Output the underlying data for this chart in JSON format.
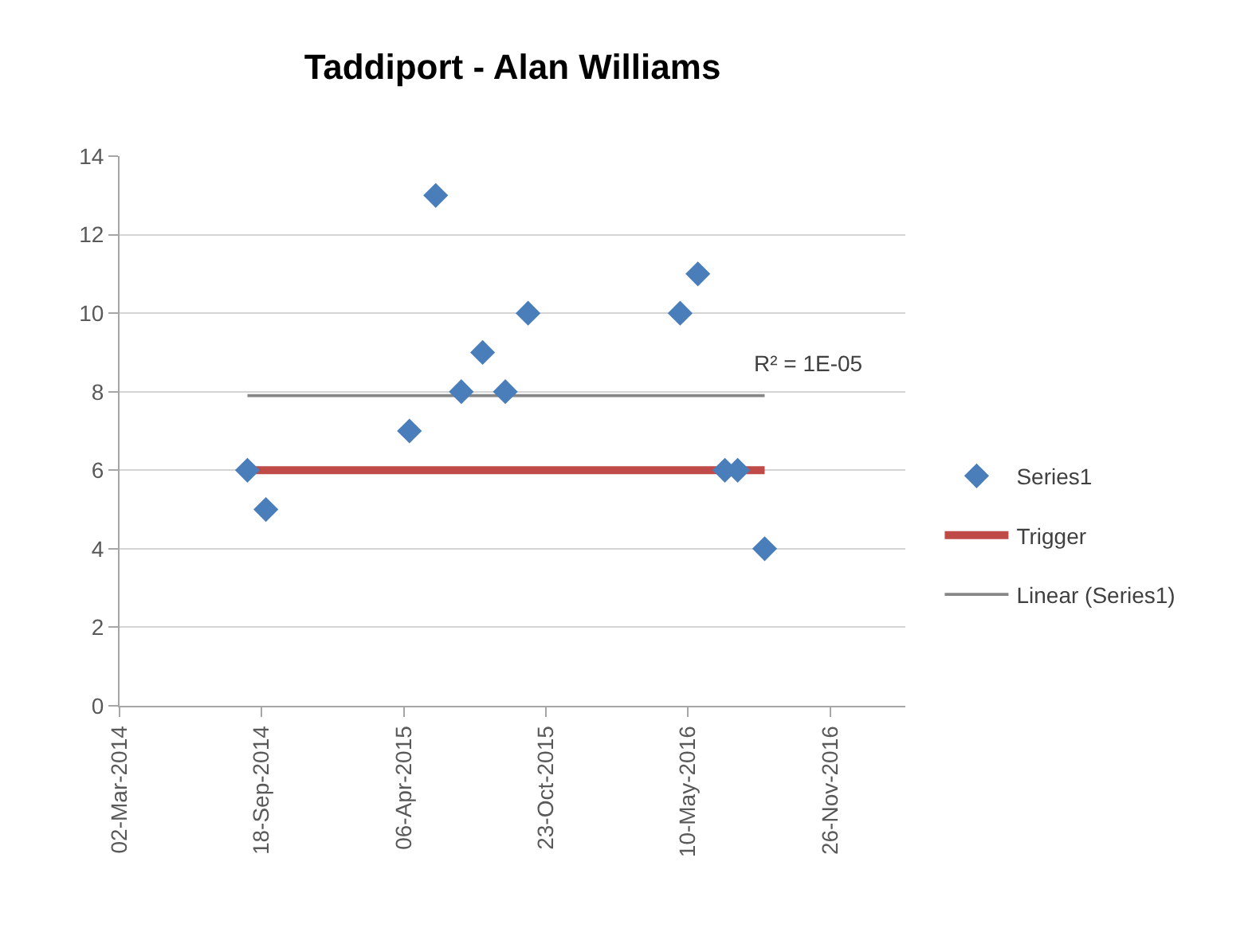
{
  "chart_data": {
    "type": "scatter",
    "title": "Taddiport - Alan Williams",
    "x": [
      "2014-08-29",
      "2014-09-24",
      "2015-04-14",
      "2015-05-21",
      "2015-06-26",
      "2015-07-26",
      "2015-08-27",
      "2015-09-28",
      "2016-04-29",
      "2016-05-24",
      "2016-07-01",
      "2016-07-19",
      "2016-08-26"
    ],
    "series": [
      {
        "name": "Series1",
        "color": "#4a7ebb",
        "marker": "diamond",
        "values": [
          6,
          5,
          7,
          13,
          8,
          9,
          8,
          10,
          10,
          11,
          6,
          6,
          4
        ]
      },
      {
        "name": "Trigger",
        "type": "line",
        "color": "#be4b48",
        "x": [
          "2014-08-29",
          "2016-08-26"
        ],
        "values": [
          6,
          6
        ]
      },
      {
        "name": "Linear (Series1)",
        "type": "line",
        "color": "#868686",
        "x": [
          "2014-08-29",
          "2016-08-26"
        ],
        "values": [
          7.9,
          7.9
        ]
      }
    ],
    "xlim": [
      "2014-03-02",
      "2017-03-12"
    ],
    "xticks": [
      {
        "value": "2014-03-02",
        "label": "02-Mar-2014"
      },
      {
        "value": "2014-09-18",
        "label": "18-Sep-2014"
      },
      {
        "value": "2015-04-06",
        "label": "06-Apr-2015"
      },
      {
        "value": "2015-10-23",
        "label": "23-Oct-2015"
      },
      {
        "value": "2016-05-10",
        "label": "10-May-2016"
      },
      {
        "value": "2016-11-26",
        "label": "26-Nov-2016"
      }
    ],
    "ylim": [
      0,
      14
    ],
    "yticks": [
      0,
      2,
      4,
      6,
      8,
      10,
      12,
      14
    ],
    "grid": "y",
    "legend": "right",
    "annotations": [
      "R² = 1E-05"
    ]
  }
}
